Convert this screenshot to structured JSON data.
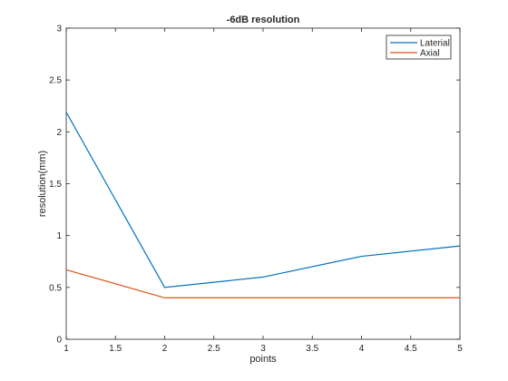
{
  "chart_data": {
    "type": "line",
    "title": "-6dB resolution",
    "xlabel": "points",
    "ylabel": "resolution(mm)",
    "xlim": [
      1,
      5
    ],
    "ylim": [
      0,
      3
    ],
    "xticks": [
      "1",
      "1.5",
      "2",
      "2.5",
      "3",
      "3.5",
      "4",
      "4.5",
      "5"
    ],
    "yticks": [
      "0",
      "0.5",
      "1",
      "1.5",
      "2",
      "2.5",
      "3"
    ],
    "x": [
      1,
      2,
      3,
      4,
      5
    ],
    "series": [
      {
        "name": "Laterial",
        "values": [
          2.19,
          0.5,
          0.6,
          0.8,
          0.9
        ],
        "color": "#0072BD"
      },
      {
        "name": "Axial",
        "values": [
          0.67,
          0.4,
          0.4,
          0.4,
          0.4
        ],
        "color": "#D95319"
      }
    ],
    "grid": false,
    "legend_position": "top-right"
  }
}
